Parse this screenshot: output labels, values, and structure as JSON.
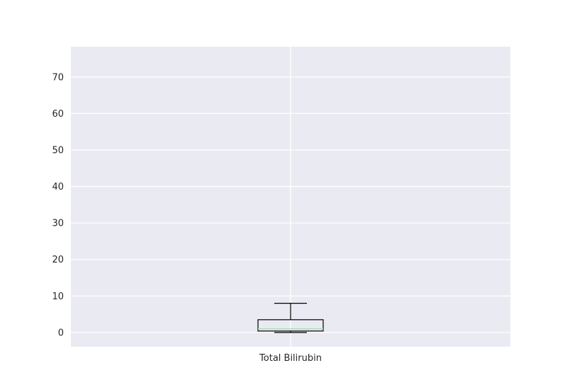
{
  "chart_data": {
    "type": "box",
    "title": "",
    "xlabel": "",
    "ylabel": "",
    "categories": [
      "Total Bilirubin"
    ],
    "boxes": [
      {
        "label": "Total Bilirubin",
        "whisker_low": 0.0,
        "q1": 0.4,
        "median": 1.0,
        "q3": 3.5,
        "whisker_high": 8.0
      }
    ],
    "ylim": [
      -3.9,
      78.3
    ],
    "yticks": [
      0,
      10,
      20,
      30,
      40,
      50,
      60,
      70
    ],
    "grid": true,
    "colors": {
      "background": "#eaeaf2",
      "grid": "#ffffff",
      "box_edge": "#000000",
      "median": "#a6dcbe",
      "text": "#262626"
    }
  }
}
